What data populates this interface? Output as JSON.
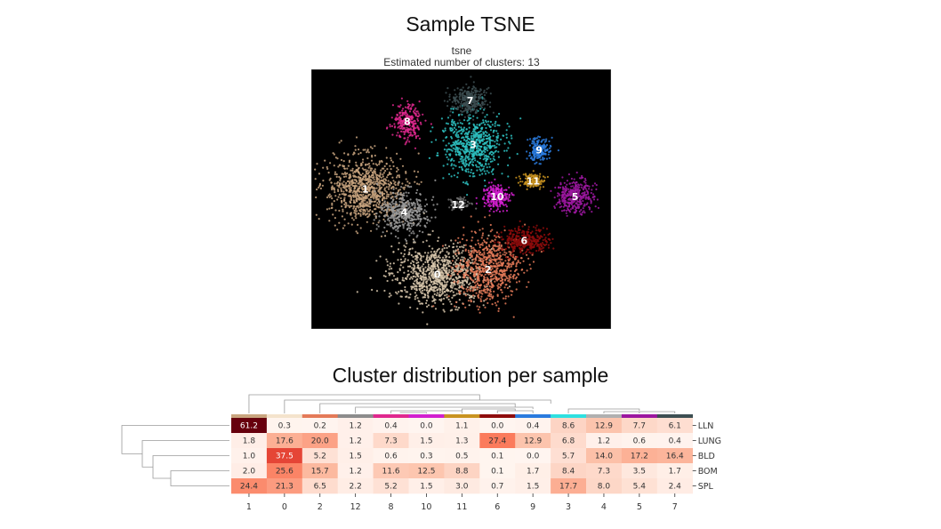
{
  "title": "Sample TSNE",
  "chart_data": [
    {
      "type": "scatter",
      "title": "tsne",
      "subtitle": "Estimated number of clusters: 13",
      "background": "#000000",
      "clusters": [
        {
          "label": "0",
          "x": 0.42,
          "y": 0.79,
          "rx": 0.17,
          "ry": 0.13,
          "n": 900,
          "color": "#d9c8ad"
        },
        {
          "label": "1",
          "x": 0.18,
          "y": 0.46,
          "rx": 0.14,
          "ry": 0.14,
          "n": 900,
          "color": "#c9a57f"
        },
        {
          "label": "2",
          "x": 0.59,
          "y": 0.77,
          "rx": 0.12,
          "ry": 0.15,
          "n": 700,
          "color": "#e47a58"
        },
        {
          "label": "3",
          "x": 0.54,
          "y": 0.29,
          "rx": 0.11,
          "ry": 0.13,
          "n": 650,
          "color": "#2ec2c2"
        },
        {
          "label": "4",
          "x": 0.31,
          "y": 0.55,
          "rx": 0.09,
          "ry": 0.09,
          "n": 420,
          "color": "#9a9a9a"
        },
        {
          "label": "5",
          "x": 0.88,
          "y": 0.49,
          "rx": 0.07,
          "ry": 0.07,
          "n": 360,
          "color": "#9c17a0"
        },
        {
          "label": "6",
          "x": 0.71,
          "y": 0.66,
          "rx": 0.09,
          "ry": 0.05,
          "n": 340,
          "color": "#8e0c0c"
        },
        {
          "label": "7",
          "x": 0.53,
          "y": 0.12,
          "rx": 0.07,
          "ry": 0.06,
          "n": 300,
          "color": "#3d4f52"
        },
        {
          "label": "8",
          "x": 0.32,
          "y": 0.2,
          "rx": 0.05,
          "ry": 0.07,
          "n": 260,
          "color": "#e0288e"
        },
        {
          "label": "9",
          "x": 0.76,
          "y": 0.31,
          "rx": 0.04,
          "ry": 0.05,
          "n": 200,
          "color": "#2a7bde"
        },
        {
          "label": "10",
          "x": 0.62,
          "y": 0.49,
          "rx": 0.05,
          "ry": 0.05,
          "n": 240,
          "color": "#d21fcf"
        },
        {
          "label": "11",
          "x": 0.74,
          "y": 0.43,
          "rx": 0.04,
          "ry": 0.03,
          "n": 150,
          "color": "#c99320"
        },
        {
          "label": "12",
          "x": 0.49,
          "y": 0.52,
          "rx": 0.04,
          "ry": 0.03,
          "n": 80,
          "color": "#6e6e6e"
        }
      ]
    },
    {
      "type": "heatmap",
      "title": "Cluster distribution per sample",
      "colormap": "Reds",
      "rows": [
        "LLN",
        "LUNG",
        "BLD",
        "BOM",
        "SPL"
      ],
      "columns": [
        "1",
        "0",
        "2",
        "12",
        "8",
        "10",
        "11",
        "6",
        "9",
        "3",
        "4",
        "5",
        "7"
      ],
      "column_colors": [
        "#c9a57f",
        "#f4e3cc",
        "#e47a58",
        "#8c8c8c",
        "#e0288e",
        "#d21fcf",
        "#c99320",
        "#8e0c0c",
        "#2a7bde",
        "#2ee0e0",
        "#b0b0b0",
        "#9c17a0",
        "#3d4f52"
      ],
      "values": [
        [
          61.2,
          0.3,
          0.2,
          1.2,
          0.4,
          0.0,
          1.1,
          0.0,
          0.4,
          8.6,
          12.9,
          7.7,
          6.1
        ],
        [
          1.8,
          17.6,
          20.0,
          1.2,
          7.3,
          1.5,
          1.3,
          27.4,
          12.9,
          6.8,
          1.2,
          0.6,
          0.4
        ],
        [
          1.0,
          37.5,
          5.2,
          1.5,
          0.6,
          0.3,
          0.5,
          0.1,
          0.0,
          5.7,
          14.0,
          17.2,
          16.4
        ],
        [
          2.0,
          25.6,
          15.7,
          1.2,
          11.6,
          12.5,
          8.8,
          0.1,
          1.7,
          8.4,
          7.3,
          3.5,
          1.7
        ],
        [
          24.4,
          21.3,
          6.5,
          2.2,
          5.2,
          1.5,
          3.0,
          0.7,
          1.5,
          17.7,
          8.0,
          5.4,
          2.4
        ]
      ],
      "vmin": 0,
      "vmax": 61.2
    }
  ]
}
